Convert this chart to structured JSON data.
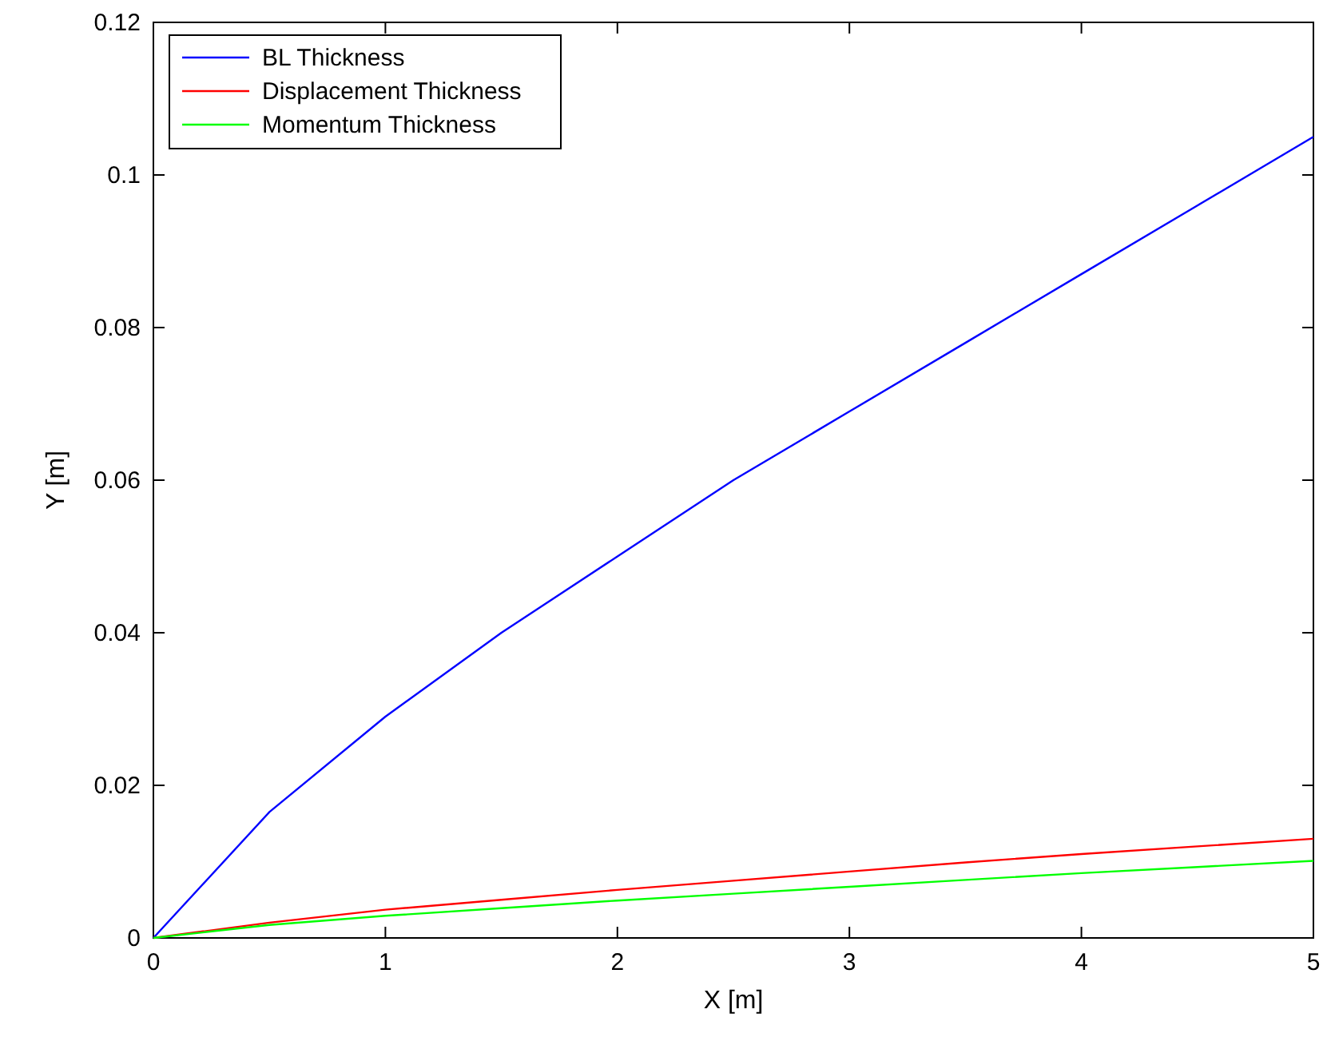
{
  "chart_data": {
    "type": "line",
    "xlabel": "X [m]",
    "ylabel": "Y [m]",
    "xlim": [
      0,
      5
    ],
    "xticks": [
      0,
      1,
      2,
      3,
      4,
      5
    ],
    "ylim": [
      0,
      0.12
    ],
    "yticks": [
      0,
      0.02,
      0.04,
      0.06,
      0.08,
      0.1,
      0.12
    ],
    "x": [
      0,
      0.5,
      1,
      1.5,
      2,
      2.5,
      3,
      3.5,
      4,
      4.5,
      5
    ],
    "series": [
      {
        "name": "BL Thickness",
        "color": "#0000ff",
        "values": [
          0,
          0.0165,
          0.029,
          0.04,
          0.05,
          0.06,
          0.069,
          0.078,
          0.087,
          0.096,
          0.105
        ]
      },
      {
        "name": "Displacement Thickness",
        "color": "#ff0000",
        "values": [
          0,
          0.002,
          0.0037,
          0.005,
          0.0063,
          0.0075,
          0.0087,
          0.0099,
          0.011,
          0.012,
          0.013
        ]
      },
      {
        "name": "Momentum Thickness",
        "color": "#00ff00",
        "values": [
          0,
          0.0017,
          0.0029,
          0.0039,
          0.0049,
          0.0058,
          0.0067,
          0.0076,
          0.0085,
          0.0093,
          0.0101
        ]
      }
    ],
    "legend": "top left",
    "grid": false,
    "line_style": "solid"
  }
}
